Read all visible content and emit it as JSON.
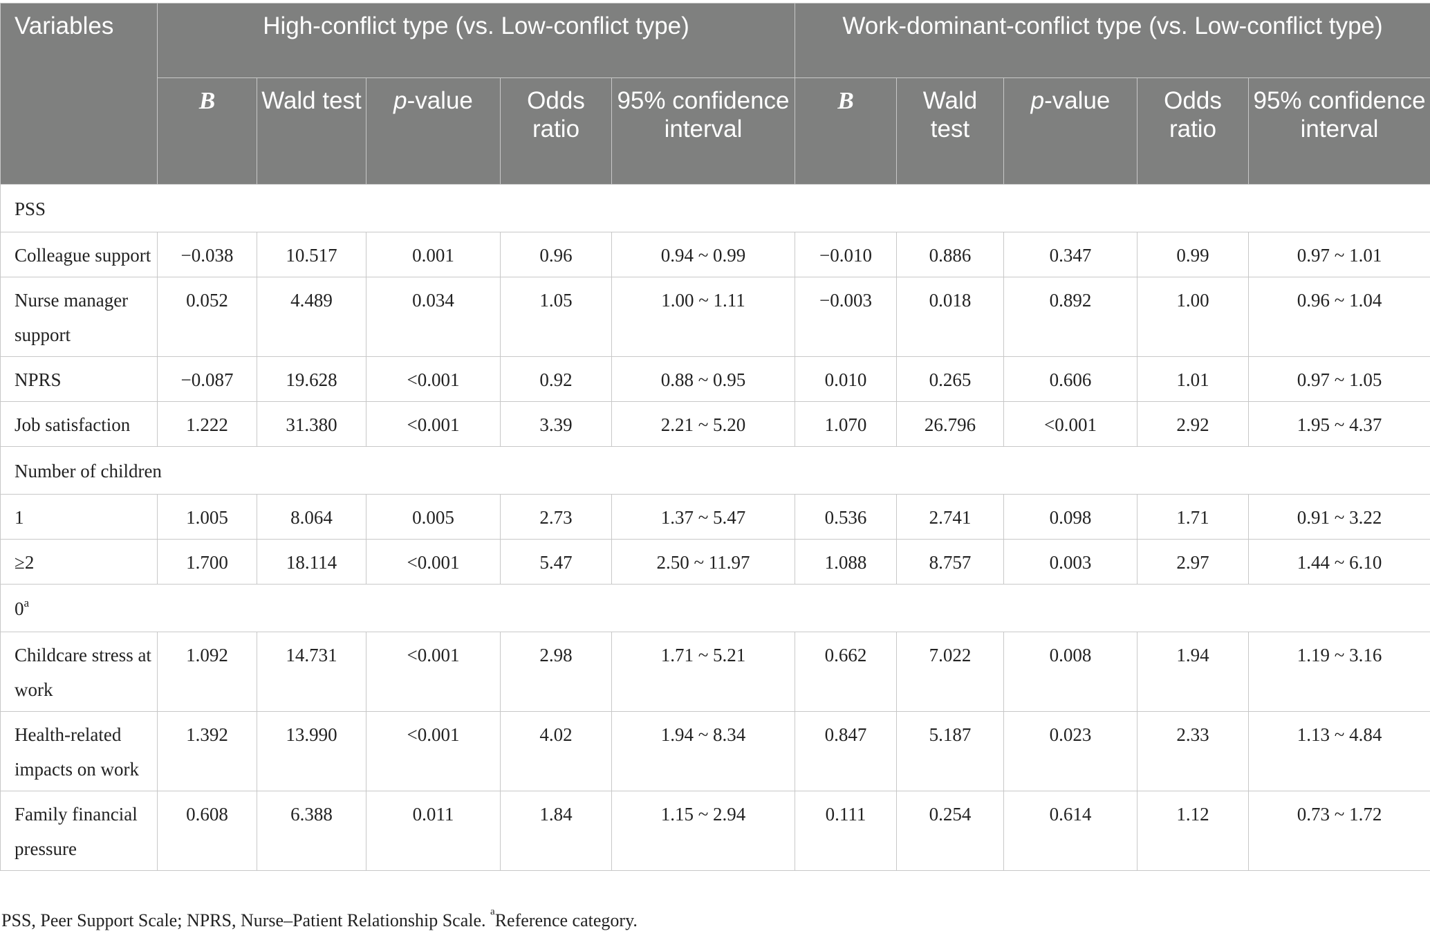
{
  "header": {
    "variables": "Variables",
    "group1": "High-conflict type (vs. Low-conflict type)",
    "group2": "Work-dominant-conflict type (vs. Low-conflict type)",
    "columns": {
      "b": "B",
      "wald": "Wald test",
      "p_italic": "p",
      "p_rest": "-value",
      "or": "Odds ratio",
      "ci": "95% confidence interval"
    }
  },
  "rows": [
    {
      "type": "group",
      "label": "PSS"
    },
    {
      "type": "data",
      "label": "Colleague support",
      "g1": [
        "−0.038",
        "10.517",
        "0.001",
        "0.96",
        "0.94 ~ 0.99"
      ],
      "g2": [
        "−0.010",
        "0.886",
        "0.347",
        "0.99",
        "0.97 ~ 1.01"
      ]
    },
    {
      "type": "data",
      "label": "Nurse manager support",
      "g1": [
        "0.052",
        "4.489",
        "0.034",
        "1.05",
        "1.00 ~ 1.11"
      ],
      "g2": [
        "−0.003",
        "0.018",
        "0.892",
        "1.00",
        "0.96 ~ 1.04"
      ]
    },
    {
      "type": "data",
      "label": "NPRS",
      "g1": [
        "−0.087",
        "19.628",
        "<0.001",
        "0.92",
        "0.88 ~ 0.95"
      ],
      "g2": [
        "0.010",
        "0.265",
        "0.606",
        "1.01",
        "0.97 ~ 1.05"
      ]
    },
    {
      "type": "data",
      "label": "Job satisfaction",
      "g1": [
        "1.222",
        "31.380",
        "<0.001",
        "3.39",
        "2.21 ~ 5.20"
      ],
      "g2": [
        "1.070",
        "26.796",
        "<0.001",
        "2.92",
        "1.95 ~ 4.37"
      ]
    },
    {
      "type": "group",
      "label": "Number of children"
    },
    {
      "type": "data",
      "label": "1",
      "g1": [
        "1.005",
        "8.064",
        "0.005",
        "2.73",
        "1.37 ~ 5.47"
      ],
      "g2": [
        "0.536",
        "2.741",
        "0.098",
        "1.71",
        "0.91 ~ 3.22"
      ]
    },
    {
      "type": "data",
      "label": "≥2",
      "g1": [
        "1.700",
        "18.114",
        "<0.001",
        "5.47",
        "2.50 ~ 11.97"
      ],
      "g2": [
        "1.088",
        "8.757",
        "0.003",
        "2.97",
        "1.44 ~ 6.10"
      ]
    },
    {
      "type": "group",
      "label": "0",
      "sup": "a"
    },
    {
      "type": "data",
      "label": "Childcare stress at work",
      "g1": [
        "1.092",
        "14.731",
        "<0.001",
        "2.98",
        "1.71 ~ 5.21"
      ],
      "g2": [
        "0.662",
        "7.022",
        "0.008",
        "1.94",
        "1.19 ~ 3.16"
      ]
    },
    {
      "type": "data",
      "label": "Health-related impacts on work",
      "g1": [
        "1.392",
        "13.990",
        "<0.001",
        "4.02",
        "1.94 ~ 8.34"
      ],
      "g2": [
        "0.847",
        "5.187",
        "0.023",
        "2.33",
        "1.13 ~ 4.84"
      ]
    },
    {
      "type": "data",
      "label": "Family financial pressure",
      "g1": [
        "0.608",
        "6.388",
        "0.011",
        "1.84",
        "1.15 ~ 2.94"
      ],
      "g2": [
        "0.111",
        "0.254",
        "0.614",
        "1.12",
        "0.73 ~ 1.72"
      ]
    }
  ],
  "footnote": {
    "text": "PSS, Peer Support Scale; NPRS, Nurse–Patient Relationship Scale. ",
    "sup": "a",
    "ref": "Reference category."
  }
}
